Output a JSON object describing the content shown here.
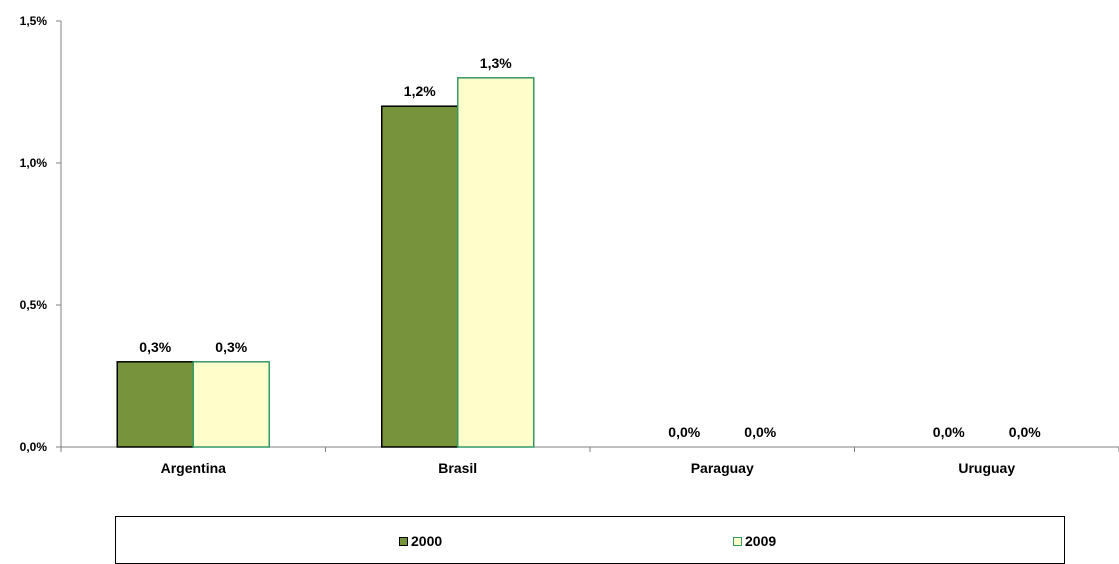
{
  "colors": {
    "series_2000_fill": "#77933C",
    "series_2000_stroke": "#000000",
    "series_2009_fill": "#FFFFCC",
    "series_2009_stroke": "#339966",
    "axis": "#808080"
  },
  "chart_data": {
    "type": "bar",
    "categories": [
      "Argentina",
      "Brasil",
      "Paraguay",
      "Uruguay"
    ],
    "series": [
      {
        "name": "2000",
        "values": [
          0.3,
          1.2,
          0.0,
          0.0
        ],
        "labels": [
          "0,3%",
          "1,2%",
          "0,0%",
          "0,0%"
        ]
      },
      {
        "name": "2009",
        "values": [
          0.3,
          1.3,
          0.0,
          0.0
        ],
        "labels": [
          "0,3%",
          "1,3%",
          "0,0%",
          "0,0%"
        ]
      }
    ],
    "ylim": [
      0,
      1.5
    ],
    "yticks": [
      0,
      0.5,
      1.0,
      1.5
    ],
    "ytick_labels": [
      "0,0%",
      "0,5%",
      "1,0%",
      "1,5%"
    ],
    "grid": false,
    "legend_position": "bottom"
  },
  "legend": {
    "items": [
      {
        "label": "2000"
      },
      {
        "label": "2009"
      }
    ]
  }
}
